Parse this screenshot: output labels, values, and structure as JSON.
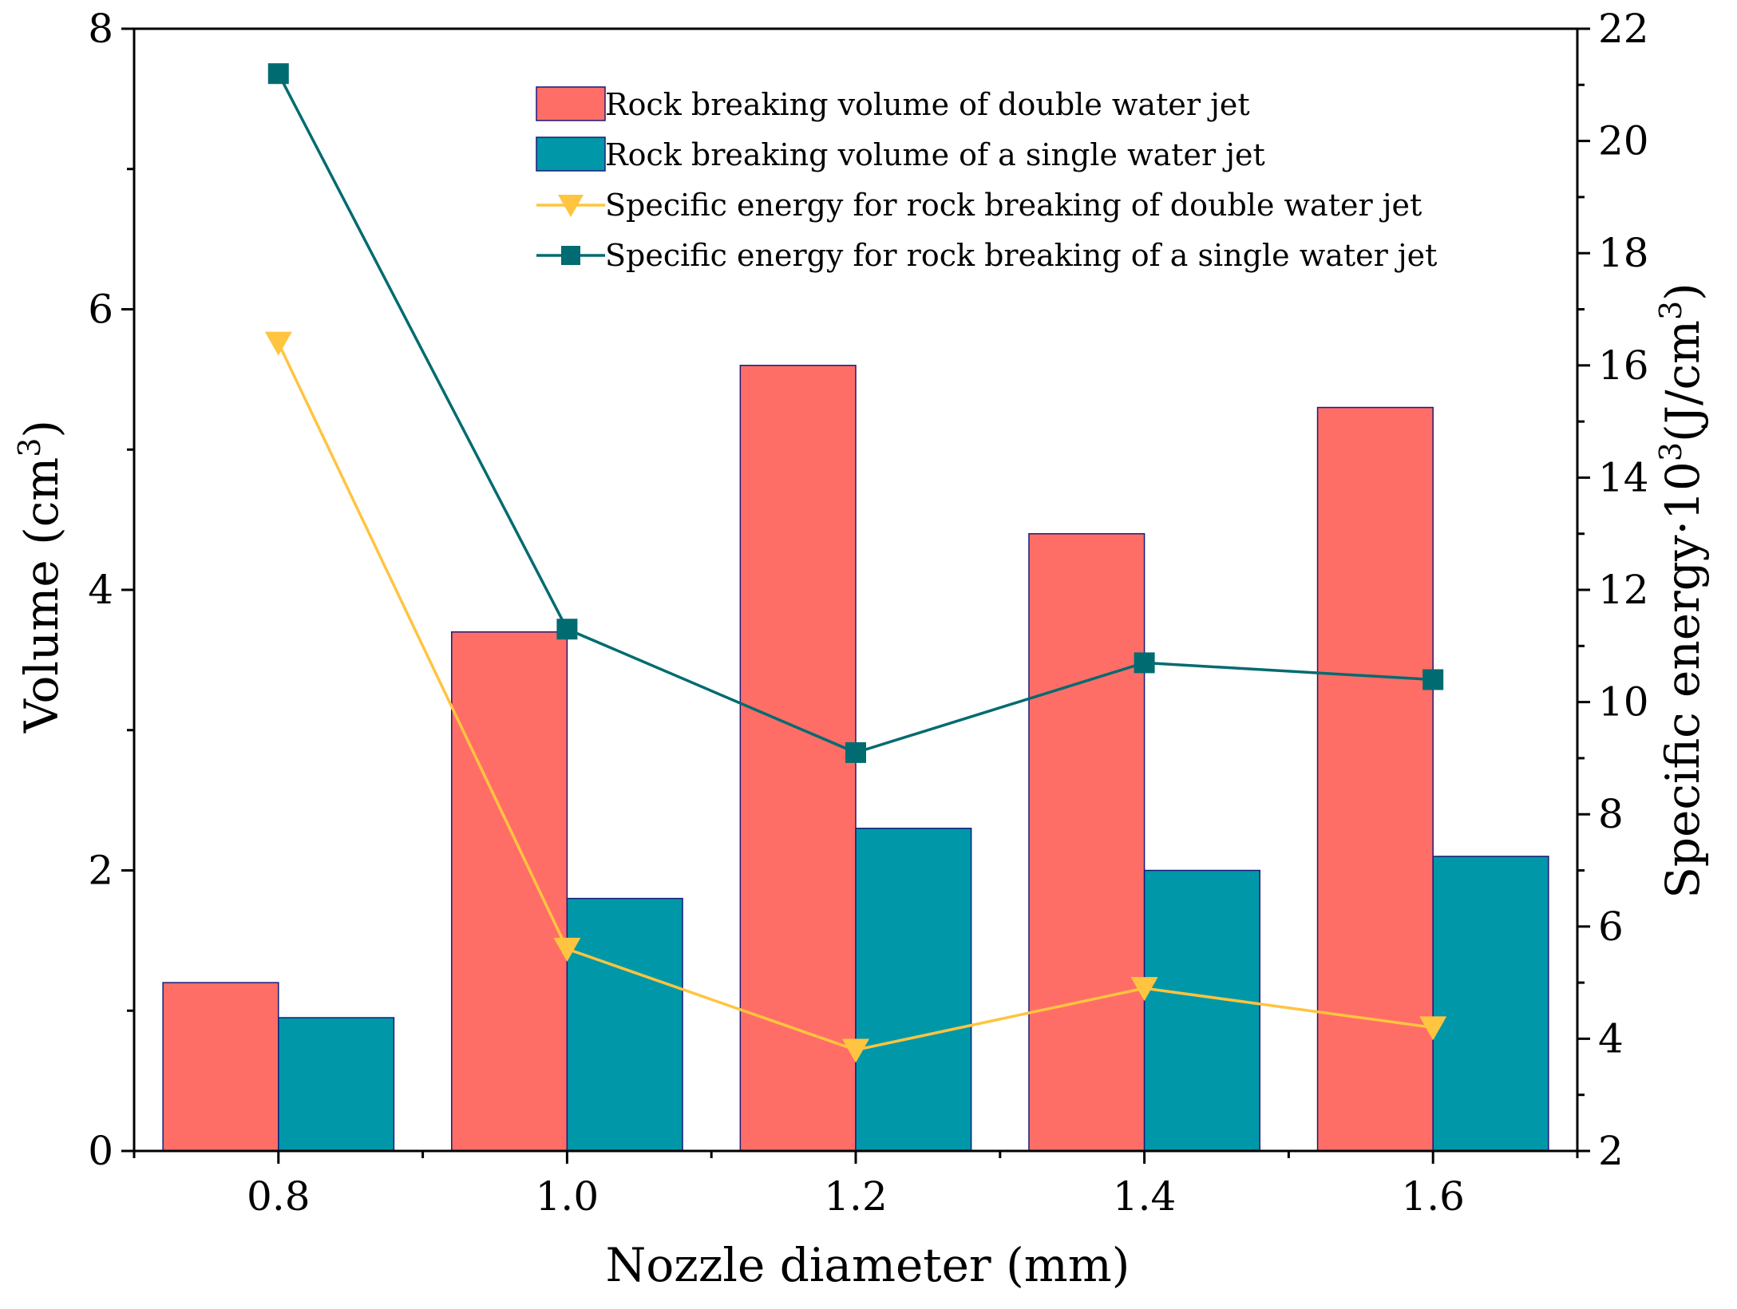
{
  "chart_data": {
    "type": "bar",
    "categories": [
      "0.8",
      "1.0",
      "1.2",
      "1.4",
      "1.6"
    ],
    "xlabel": "Nozzle diameter (mm)",
    "ylabel": "Volume (cm",
    "ylabel_sup": "3",
    "ylabel_end": ")",
    "y2label": "Specific energy·10",
    "y2label_sup": "3",
    "y2label_mid": "(J/cm",
    "y2label_sup2": "3",
    "y2label_end": ")",
    "ylim": [
      0,
      8
    ],
    "yticks": [
      "0",
      "2",
      "4",
      "6",
      "8"
    ],
    "y2lim": [
      2,
      22
    ],
    "y2ticks": [
      "2",
      "4",
      "6",
      "8",
      "10",
      "12",
      "14",
      "16",
      "18",
      "20",
      "22"
    ],
    "bar_series": [
      {
        "name": "Rock breaking volume of double water jet",
        "color": "#FF6E66",
        "values": [
          1.2,
          3.7,
          5.6,
          4.4,
          5.3
        ]
      },
      {
        "name": "Rock breaking volume of a single water jet",
        "color": "#0098A8",
        "values": [
          0.95,
          1.8,
          2.3,
          2.0,
          2.1
        ]
      }
    ],
    "line_series": [
      {
        "name": "Specific energy for rock breaking of double water jet",
        "color": "#FFC440",
        "marker": "triangle-down",
        "axis": "right",
        "values": [
          16.4,
          5.6,
          3.8,
          4.9,
          4.2
        ]
      },
      {
        "name": "Specific energy for rock breaking of a single water jet",
        "color": "#006B70",
        "marker": "square",
        "axis": "right",
        "values": [
          21.2,
          11.3,
          9.1,
          10.7,
          10.4
        ]
      }
    ],
    "legend_position": "top-right"
  }
}
